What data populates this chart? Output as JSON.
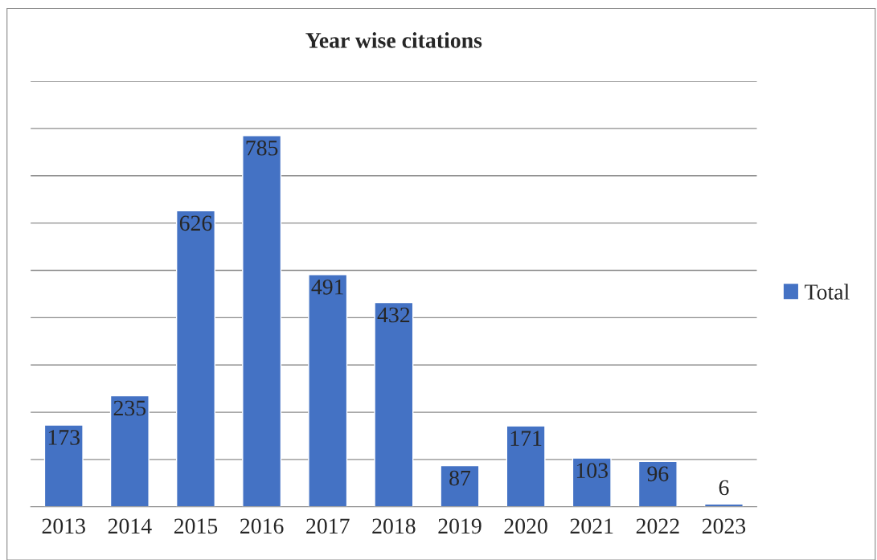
{
  "chart_data": {
    "type": "bar",
    "title": "Year wise citations",
    "categories": [
      "2013",
      "2014",
      "2015",
      "2016",
      "2017",
      "2018",
      "2019",
      "2020",
      "2021",
      "2022",
      "2023"
    ],
    "series": [
      {
        "name": "Total",
        "color": "#4472c4",
        "values": [
          173,
          235,
          626,
          785,
          491,
          432,
          87,
          171,
          103,
          96,
          6
        ]
      }
    ],
    "ylim": [
      0,
      900
    ],
    "yticks": [
      {
        "value": 0,
        "label": null
      },
      {
        "value": 100,
        "label": null
      },
      {
        "value": 200,
        "label": null
      },
      {
        "value": 300,
        "label": null
      },
      {
        "value": 400,
        "label": null
      },
      {
        "value": 500,
        "label": null
      },
      {
        "value": 600,
        "label": null
      },
      {
        "value": 700,
        "label": null
      },
      {
        "value": 800,
        "label": null
      },
      {
        "value": 900,
        "label": null
      }
    ],
    "tick_labels": "x",
    "grid": "y",
    "legend": "right",
    "data_labels": true
  }
}
